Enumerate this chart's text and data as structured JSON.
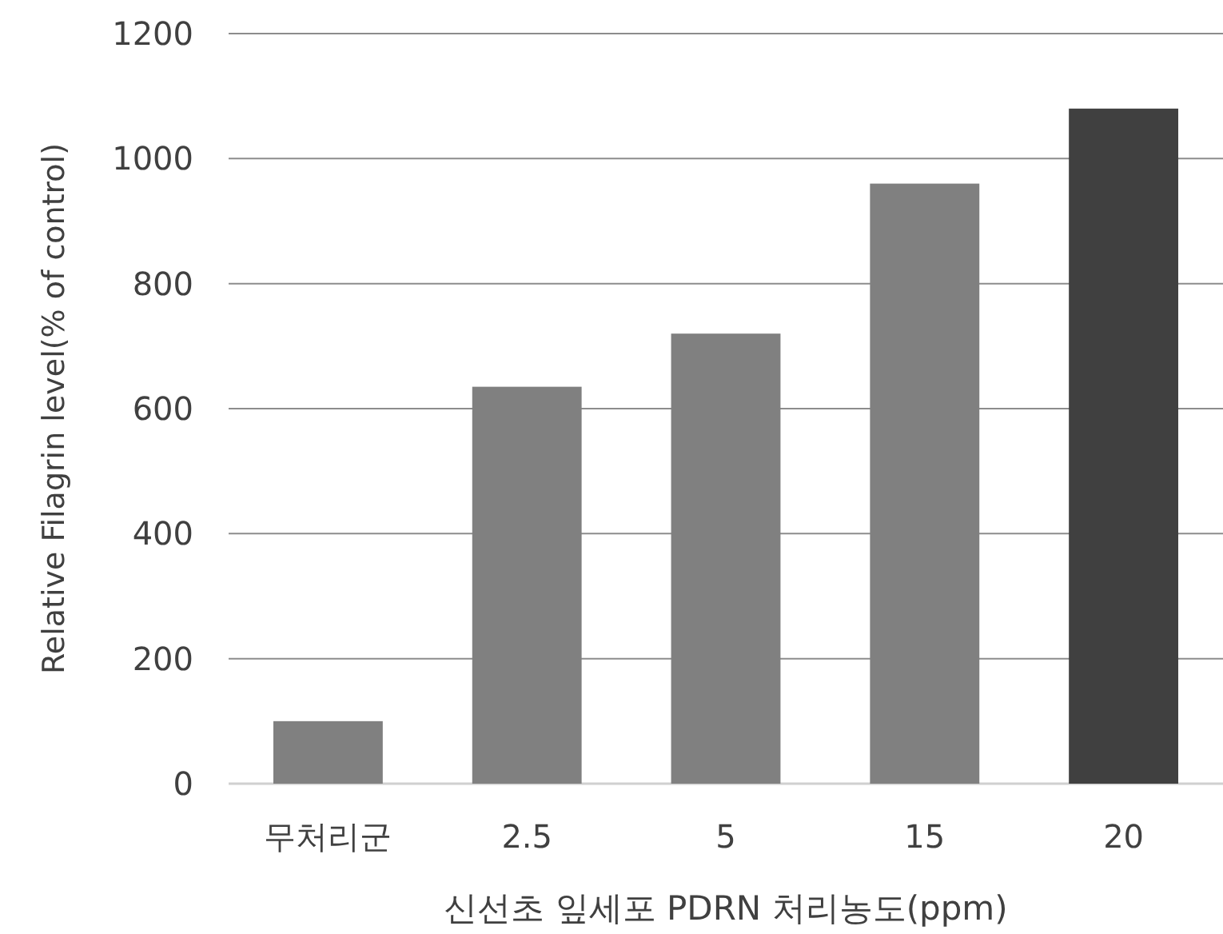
{
  "chart_data": {
    "type": "bar",
    "categories": [
      "무처리군",
      "2.5",
      "5",
      "15",
      "20"
    ],
    "values": [
      100,
      635,
      720,
      960,
      1080
    ],
    "colors": [
      "#808080",
      "#808080",
      "#808080",
      "#808080",
      "#404040"
    ],
    "xlabel": "신선초 잎세포 PDRN 처리농도(ppm)",
    "ylabel": "Relative Filagrin level(% of control)",
    "ylim": [
      0,
      1200
    ],
    "yticks": [
      0,
      200,
      400,
      600,
      800,
      1000,
      1200
    ],
    "grid": "y"
  }
}
